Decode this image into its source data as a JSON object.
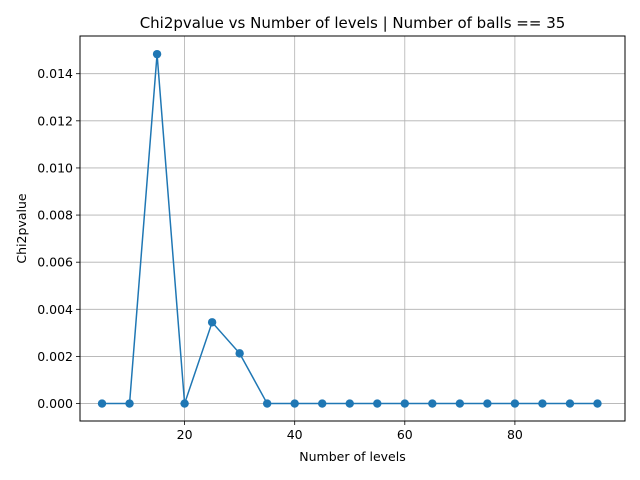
{
  "chart_data": {
    "type": "line",
    "title": "Chi2pvalue vs Number of levels | Number of balls == 35",
    "xlabel": "Number of levels",
    "ylabel": "Chi2pvalue",
    "xlim": [
      1,
      100
    ],
    "ylim": [
      -0.00074,
      0.0156
    ],
    "xticks": [
      20,
      40,
      60,
      80
    ],
    "xtick_labels": [
      "20",
      "40",
      "60",
      "80"
    ],
    "yticks": [
      0,
      0.002,
      0.004,
      0.006,
      0.008,
      0.01,
      0.012,
      0.014
    ],
    "ytick_labels": [
      "0.000",
      "0.002",
      "0.004",
      "0.006",
      "0.008",
      "0.010",
      "0.012",
      "0.014"
    ],
    "grid": true,
    "series": [
      {
        "color": "#1f77b4",
        "marker": "circle",
        "x": [
          5,
          10,
          15,
          20,
          25,
          30,
          35,
          40,
          45,
          50,
          55,
          60,
          65,
          70,
          75,
          80,
          85,
          90,
          95
        ],
        "y": [
          0,
          0,
          0.01483,
          0,
          0.00345,
          0.00213,
          0,
          0,
          0,
          0,
          0,
          0,
          0,
          0,
          0,
          0,
          0,
          0,
          0
        ]
      }
    ]
  }
}
